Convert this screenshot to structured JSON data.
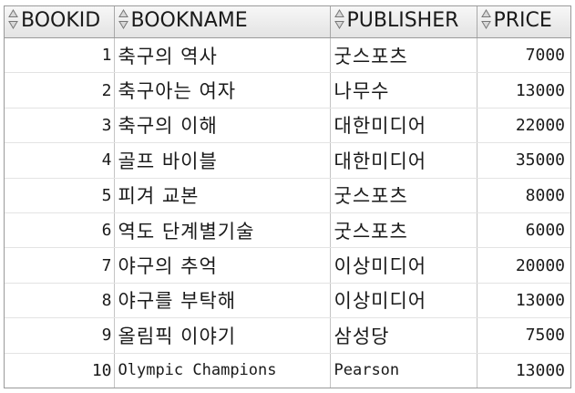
{
  "columns": [
    {
      "key": "BOOKID",
      "label": "BOOKID"
    },
    {
      "key": "BOOKNAME",
      "label": "BOOKNAME"
    },
    {
      "key": "PUBLISHER",
      "label": "PUBLISHER"
    },
    {
      "key": "PRICE",
      "label": "PRICE"
    }
  ],
  "sort_icon": "sort-updown-icon",
  "rows": [
    {
      "bookid": "1",
      "bookname": "축구의 역사",
      "publisher": "굿스포츠",
      "price": "7000"
    },
    {
      "bookid": "2",
      "bookname": "축구아는 여자",
      "publisher": "나무수",
      "price": "13000"
    },
    {
      "bookid": "3",
      "bookname": "축구의 이해",
      "publisher": "대한미디어",
      "price": "22000"
    },
    {
      "bookid": "4",
      "bookname": "골프 바이블",
      "publisher": "대한미디어",
      "price": "35000"
    },
    {
      "bookid": "5",
      "bookname": "피겨 교본",
      "publisher": "굿스포츠",
      "price": "8000"
    },
    {
      "bookid": "6",
      "bookname": "역도 단계별기술",
      "publisher": "굿스포츠",
      "price": "6000"
    },
    {
      "bookid": "7",
      "bookname": "야구의 추억",
      "publisher": "이상미디어",
      "price": "20000"
    },
    {
      "bookid": "8",
      "bookname": "야구를 부탁해",
      "publisher": "이상미디어",
      "price": "13000"
    },
    {
      "bookid": "9",
      "bookname": "올림픽 이야기",
      "publisher": "삼성당",
      "price": "7500"
    },
    {
      "bookid": "10",
      "bookname": "Olympic Champions",
      "publisher": "Pearson",
      "price": "13000"
    }
  ]
}
